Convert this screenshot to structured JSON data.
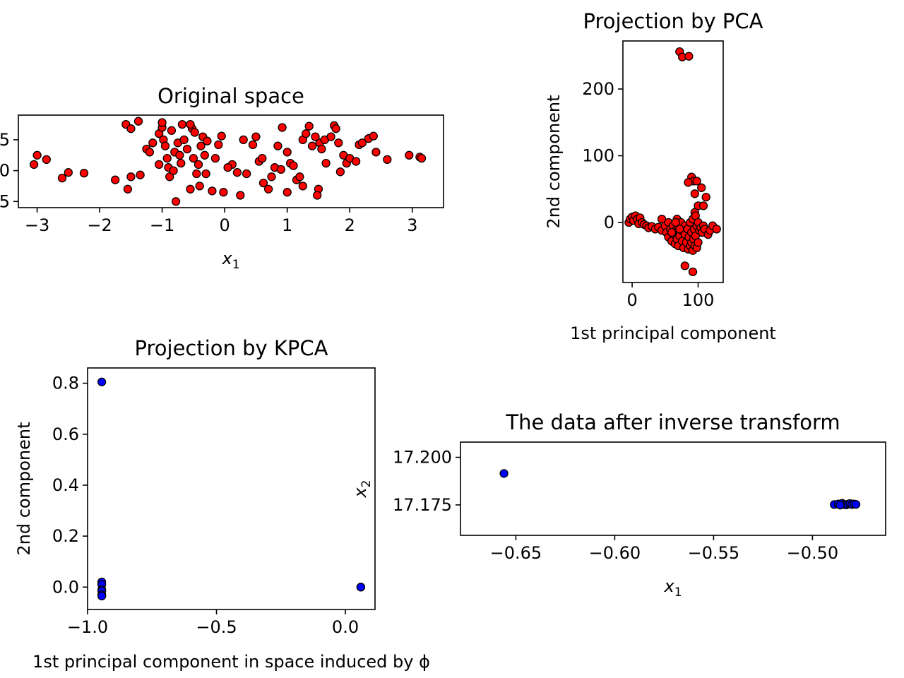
{
  "chart_data": [
    {
      "id": "original",
      "type": "scatter",
      "title": "Original space",
      "xlabel": "x",
      "xlabel_sub": "1",
      "ylabel": "",
      "xlim": [
        -3.3,
        3.5
      ],
      "ylim": [
        -0.6,
        0.9
      ],
      "xticks": [
        {
          "v": -3,
          "label": "−3"
        },
        {
          "v": -2,
          "label": "−2"
        },
        {
          "v": -1,
          "label": "−1"
        },
        {
          "v": 0,
          "label": "0"
        },
        {
          "v": 1,
          "label": "1"
        },
        {
          "v": 2,
          "label": "2"
        },
        {
          "v": 3,
          "label": "3"
        }
      ],
      "yticks": [
        {
          "v": 0.5,
          "label": ".5"
        },
        {
          "v": 0.0,
          "label": ".0"
        },
        {
          "v": -0.5,
          "label": ".5"
        }
      ],
      "marker_color": "#ff0000",
      "points": [
        [
          -3.05,
          0.1
        ],
        [
          -3.0,
          0.25
        ],
        [
          -2.85,
          0.18
        ],
        [
          -2.6,
          -0.12
        ],
        [
          -2.5,
          -0.03
        ],
        [
          -2.25,
          -0.04
        ],
        [
          -1.75,
          -0.15
        ],
        [
          -1.55,
          -0.3
        ],
        [
          -1.5,
          -0.1
        ],
        [
          -1.35,
          -0.07
        ],
        [
          -1.58,
          0.75
        ],
        [
          -1.5,
          0.68
        ],
        [
          -1.38,
          0.8
        ],
        [
          -1.25,
          0.35
        ],
        [
          -1.2,
          0.3
        ],
        [
          -1.15,
          0.45
        ],
        [
          -1.05,
          0.1
        ],
        [
          -1.05,
          0.6
        ],
        [
          -1.0,
          0.7
        ],
        [
          -1.0,
          0.78
        ],
        [
          -0.98,
          0.5
        ],
        [
          -0.95,
          0.4
        ],
        [
          -0.92,
          0.2
        ],
        [
          -0.9,
          0.05
        ],
        [
          -0.88,
          -0.1
        ],
        [
          -0.85,
          0.65
        ],
        [
          -0.82,
          0.0
        ],
        [
          -0.8,
          0.3
        ],
        [
          -0.78,
          -0.5
        ],
        [
          -0.75,
          0.45
        ],
        [
          -0.72,
          0.25
        ],
        [
          -0.7,
          0.12
        ],
        [
          -0.68,
          0.75
        ],
        [
          -0.65,
          0.5
        ],
        [
          -0.6,
          0.35
        ],
        [
          -0.55,
          -0.3
        ],
        [
          -0.52,
          0.68
        ],
        [
          -0.5,
          0.2
        ],
        [
          -0.48,
          0.62
        ],
        [
          -0.45,
          -0.05
        ],
        [
          -0.42,
          0.1
        ],
        [
          -0.4,
          -0.25
        ],
        [
          -0.38,
          0.4
        ],
        [
          -0.35,
          0.55
        ],
        [
          -0.32,
          0.25
        ],
        [
          -0.3,
          -0.05
        ],
        [
          -0.28,
          0.48
        ],
        [
          -0.2,
          -0.33
        ],
        [
          -0.1,
          0.42
        ],
        [
          -0.05,
          0.56
        ],
        [
          -0.02,
          -0.35
        ],
        [
          0.12,
          0.1
        ],
        [
          0.2,
          -0.03
        ],
        [
          0.3,
          0.5
        ],
        [
          0.35,
          -0.05
        ],
        [
          0.45,
          0.42
        ],
        [
          0.5,
          0.55
        ],
        [
          0.55,
          0.15
        ],
        [
          0.6,
          0.2
        ],
        [
          0.62,
          -0.2
        ],
        [
          0.75,
          -0.1
        ],
        [
          0.8,
          0.05
        ],
        [
          0.85,
          0.4
        ],
        [
          0.9,
          0.02
        ],
        [
          0.92,
          0.7
        ],
        [
          1.0,
          -0.35
        ],
        [
          1.05,
          0.12
        ],
        [
          1.1,
          0.08
        ],
        [
          1.15,
          -0.15
        ],
        [
          1.2,
          -0.1
        ],
        [
          1.25,
          0.5
        ],
        [
          1.3,
          0.6
        ],
        [
          1.35,
          0.72
        ],
        [
          1.4,
          0.4
        ],
        [
          1.45,
          0.55
        ],
        [
          1.5,
          -0.3
        ],
        [
          1.52,
          0.45
        ],
        [
          1.55,
          0.35
        ],
        [
          1.6,
          0.5
        ],
        [
          1.62,
          0.12
        ],
        [
          1.7,
          0.55
        ],
        [
          1.75,
          0.73
        ],
        [
          1.78,
          0.68
        ],
        [
          1.82,
          0.45
        ],
        [
          1.85,
          -0.02
        ],
        [
          1.9,
          0.25
        ],
        [
          1.95,
          0.12
        ],
        [
          2.0,
          0.2
        ],
        [
          2.1,
          0.15
        ],
        [
          2.15,
          0.42
        ],
        [
          2.2,
          0.45
        ],
        [
          2.3,
          0.52
        ],
        [
          2.38,
          0.56
        ],
        [
          2.42,
          0.3
        ],
        [
          2.6,
          0.18
        ],
        [
          2.95,
          0.25
        ],
        [
          3.12,
          0.22
        ],
        [
          3.15,
          0.2
        ],
        [
          1.25,
          -0.25
        ],
        [
          0.05,
          0.05
        ],
        [
          -0.15,
          0.2
        ],
        [
          0.7,
          -0.3
        ],
        [
          1.48,
          -0.4
        ],
        [
          -0.55,
          0.75
        ],
        [
          0.25,
          -0.4
        ],
        [
          1.0,
          0.3
        ]
      ]
    },
    {
      "id": "pca",
      "type": "scatter",
      "title": "Projection by PCA",
      "xlabel": "1st principal component",
      "ylabel": "2nd component",
      "xlim": [
        -14,
        138
      ],
      "ylim": [
        -90,
        272
      ],
      "xticks": [
        {
          "v": 0,
          "label": "0"
        },
        {
          "v": 100,
          "label": "100"
        }
      ],
      "yticks": [
        {
          "v": 0,
          "label": "0"
        },
        {
          "v": 100,
          "label": "100"
        },
        {
          "v": 200,
          "label": "200"
        }
      ],
      "marker_color": "#ff0000",
      "points": [
        [
          72,
          256
        ],
        [
          76,
          248
        ],
        [
          86,
          249
        ],
        [
          90,
          68
        ],
        [
          93,
          62
        ],
        [
          85,
          60
        ],
        [
          98,
          62
        ],
        [
          105,
          52
        ],
        [
          95,
          43
        ],
        [
          112,
          38
        ],
        [
          100,
          25
        ],
        [
          108,
          25
        ],
        [
          95,
          15
        ],
        [
          -5,
          0
        ],
        [
          -3,
          5
        ],
        [
          0,
          8
        ],
        [
          2,
          3
        ],
        [
          5,
          10
        ],
        [
          8,
          5
        ],
        [
          10,
          -2
        ],
        [
          12,
          7
        ],
        [
          15,
          0
        ],
        [
          18,
          -3
        ],
        [
          22,
          -5
        ],
        [
          25,
          -8
        ],
        [
          30,
          -6
        ],
        [
          35,
          -10
        ],
        [
          40,
          -7
        ],
        [
          45,
          5
        ],
        [
          45,
          -12
        ],
        [
          50,
          -5
        ],
        [
          52,
          -15
        ],
        [
          55,
          0
        ],
        [
          55,
          -22
        ],
        [
          58,
          -10
        ],
        [
          60,
          -28
        ],
        [
          62,
          -5
        ],
        [
          64,
          -18
        ],
        [
          65,
          -32
        ],
        [
          66,
          -12
        ],
        [
          68,
          5
        ],
        [
          68,
          -25
        ],
        [
          70,
          -8
        ],
        [
          70,
          -35
        ],
        [
          72,
          -20
        ],
        [
          74,
          0
        ],
        [
          75,
          -12
        ],
        [
          76,
          -28
        ],
        [
          78,
          -38
        ],
        [
          80,
          -5
        ],
        [
          80,
          -18
        ],
        [
          82,
          -30
        ],
        [
          84,
          -10
        ],
        [
          85,
          -40
        ],
        [
          86,
          -22
        ],
        [
          88,
          0
        ],
        [
          88,
          -35
        ],
        [
          90,
          -15
        ],
        [
          90,
          -30
        ],
        [
          92,
          5
        ],
        [
          92,
          -42
        ],
        [
          93,
          -25
        ],
        [
          94,
          -10
        ],
        [
          95,
          -35
        ],
        [
          96,
          10
        ],
        [
          96,
          -20
        ],
        [
          98,
          -38
        ],
        [
          98,
          -5
        ],
        [
          100,
          0
        ],
        [
          100,
          -30
        ],
        [
          102,
          -12
        ],
        [
          104,
          -8
        ],
        [
          106,
          -15
        ],
        [
          108,
          -5
        ],
        [
          110,
          -10
        ],
        [
          115,
          -18
        ],
        [
          118,
          -12
        ],
        [
          122,
          -5
        ],
        [
          128,
          -10
        ],
        [
          80,
          -65
        ],
        [
          92,
          -74
        ],
        [
          60,
          -15
        ],
        [
          72,
          -10
        ],
        [
          66,
          0
        ]
      ]
    },
    {
      "id": "kpca",
      "type": "scatter",
      "title": "Projection by KPCA",
      "xlabel": "1st principal component in space induced by ϕ",
      "ylabel": "2nd component",
      "xlim": [
        -1.0,
        0.115
      ],
      "ylim": [
        -0.088,
        0.86
      ],
      "xticks": [
        {
          "v": -1.0,
          "label": "−1.0"
        },
        {
          "v": -0.5,
          "label": "−0.5"
        },
        {
          "v": 0.0,
          "label": "0.0"
        }
      ],
      "yticks": [
        {
          "v": 0.0,
          "label": "0.0"
        },
        {
          "v": 0.2,
          "label": "0.2"
        },
        {
          "v": 0.4,
          "label": "0.4"
        },
        {
          "v": 0.6,
          "label": "0.6"
        },
        {
          "v": 0.8,
          "label": "0.8"
        }
      ],
      "marker_color": "#0000ff",
      "points": [
        [
          -0.945,
          0.805
        ],
        [
          -0.945,
          0.02
        ],
        [
          -0.945,
          0.01
        ],
        [
          -0.945,
          -0.01
        ],
        [
          -0.945,
          -0.015
        ],
        [
          -0.945,
          -0.03
        ],
        [
          -0.945,
          -0.035
        ],
        [
          0.06,
          0.0
        ],
        [
          0.06,
          0.0
        ],
        [
          0.06,
          0.0
        ]
      ]
    },
    {
      "id": "inverse",
      "type": "scatter",
      "title": "The data after inverse transform",
      "xlabel": "x",
      "xlabel_sub": "1",
      "ylabel": "x",
      "ylabel_sub": "2",
      "xlim": [
        -0.678,
        -0.463
      ],
      "ylim": [
        17.159,
        17.208
      ],
      "xticks": [
        {
          "v": -0.65,
          "label": "−0.65"
        },
        {
          "v": -0.6,
          "label": "−0.60"
        },
        {
          "v": -0.55,
          "label": "−0.55"
        },
        {
          "v": -0.5,
          "label": "−0.50"
        }
      ],
      "yticks": [
        {
          "v": 17.175,
          "label": "17.175"
        },
        {
          "v": 17.2,
          "label": "17.200"
        }
      ],
      "marker_color": "#0000ff",
      "points": [
        [
          -0.656,
          17.1915
        ],
        [
          -0.489,
          17.1752
        ],
        [
          -0.487,
          17.1755
        ],
        [
          -0.485,
          17.1758
        ],
        [
          -0.484,
          17.1752
        ],
        [
          -0.483,
          17.175
        ],
        [
          -0.482,
          17.1754
        ],
        [
          -0.481,
          17.1757
        ],
        [
          -0.48,
          17.1752
        ],
        [
          -0.479,
          17.1755
        ],
        [
          -0.478,
          17.1753
        ],
        [
          -0.486,
          17.1749
        ]
      ]
    }
  ]
}
